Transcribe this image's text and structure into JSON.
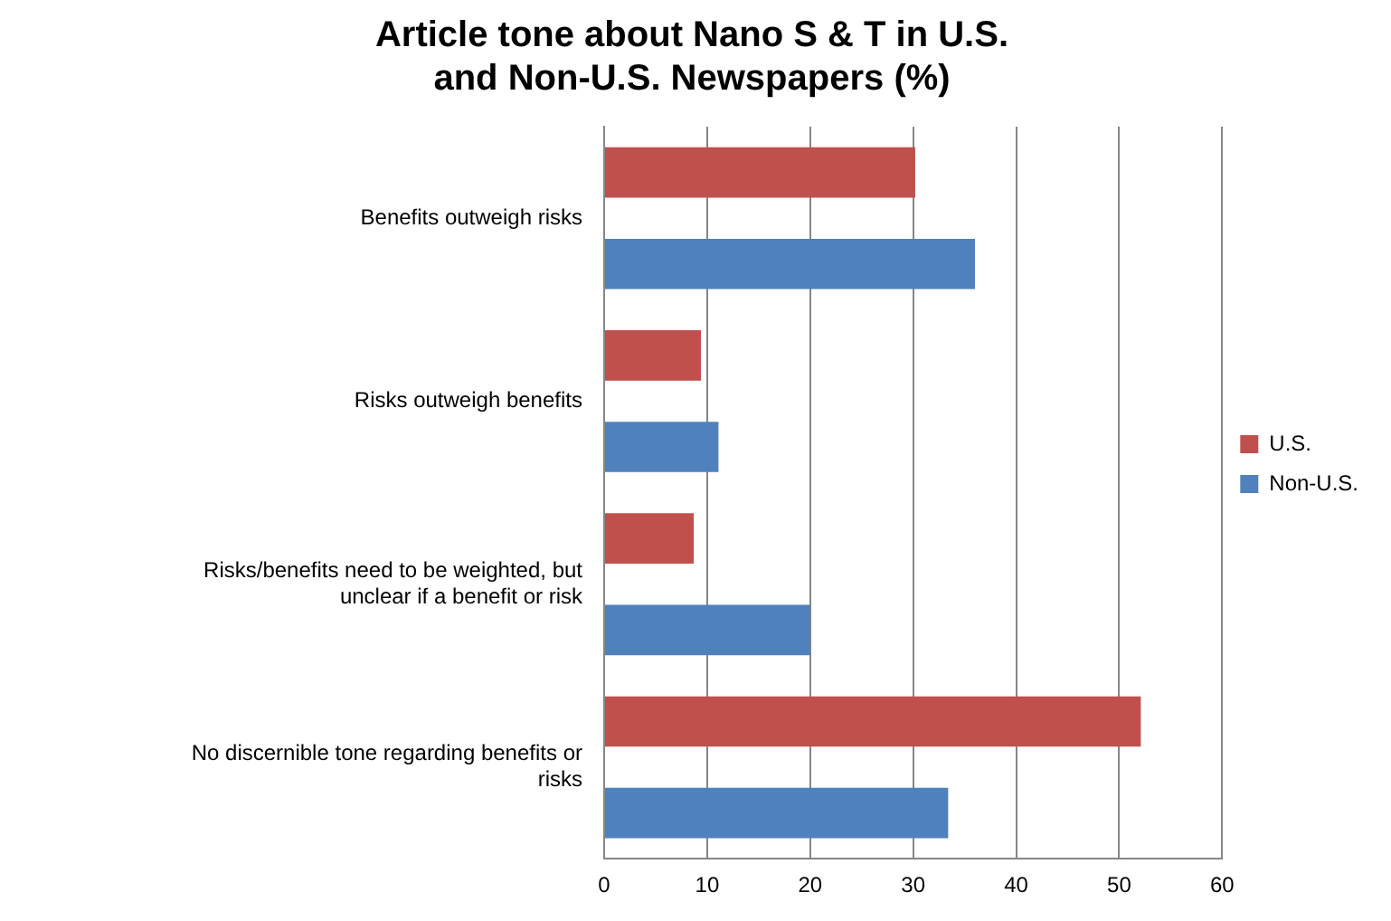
{
  "chart_data": {
    "type": "bar",
    "orientation": "horizontal",
    "title": "Article tone about Nano S & T in U.S. and Non-U.S. Newspapers (%)",
    "categories": [
      "Benefits outweigh risks",
      "Risks outweigh benefits",
      "Risks/benefits need to be weighted, but unclear if a benefit or risk",
      "No discernible tone regarding benefits or risks"
    ],
    "series": [
      {
        "name": "U.S.",
        "color": "#c0504d",
        "values": [
          30.2,
          9.4,
          8.7,
          52.1
        ]
      },
      {
        "name": "Non-U.S.",
        "color": "#4f81bd",
        "values": [
          36,
          11.1,
          20,
          33.4
        ]
      }
    ],
    "xlim": [
      0,
      60
    ],
    "xticks": [
      0,
      10,
      20,
      30,
      40,
      50,
      60
    ],
    "grid": "x",
    "legend": "right"
  }
}
